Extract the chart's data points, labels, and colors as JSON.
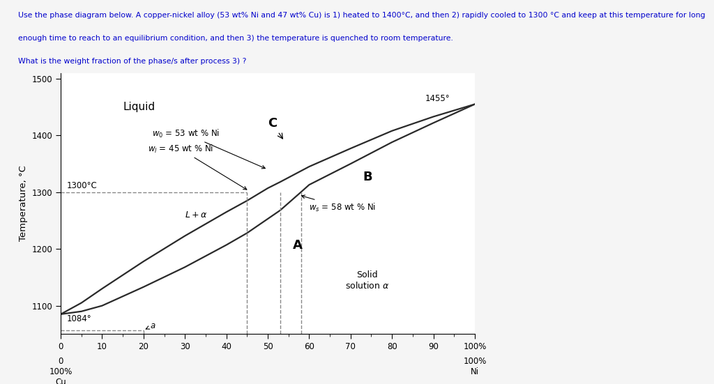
{
  "ylabel": "Temperature, °C",
  "xlim": [
    0,
    100
  ],
  "ylim": [
    1050,
    1510
  ],
  "yticks": [
    1100,
    1200,
    1300,
    1400,
    1500
  ],
  "xticks": [
    0,
    10,
    20,
    30,
    40,
    50,
    60,
    70,
    80,
    90,
    100
  ],
  "liquidus_x": [
    0,
    5,
    10,
    20,
    30,
    40,
    45,
    50,
    53,
    60,
    70,
    80,
    90,
    100
  ],
  "liquidus_y": [
    1085,
    1105,
    1130,
    1178,
    1223,
    1265,
    1285,
    1307,
    1318,
    1345,
    1377,
    1408,
    1433,
    1455
  ],
  "solidus_x": [
    0,
    5,
    10,
    20,
    30,
    40,
    45,
    50,
    53,
    58,
    60,
    70,
    80,
    90,
    100
  ],
  "solidus_y": [
    1085,
    1090,
    1100,
    1133,
    1168,
    1207,
    1228,
    1253,
    1268,
    1300,
    1313,
    1350,
    1388,
    1422,
    1455
  ],
  "dash_color": "#888888",
  "line_color": "#2a2a2a",
  "bg_color": "#f5f5f5",
  "plot_bg": "#ffffff",
  "text_color": "#0000cc",
  "header_line1": "Use the phase diagram below. A copper-nickel alloy (53 wt% Ni and 47 wt% Cu) is 1) heated to 1400°C, and then 2) rapidly cooled to 1300 °C and keep at this temperature for long",
  "header_line2": "enough time to reach to an equilibrium condition, and then 3) the temperature is quenched to room temperature.",
  "header_line3": "What is the weight fraction of the phase/s after process 3) ?"
}
